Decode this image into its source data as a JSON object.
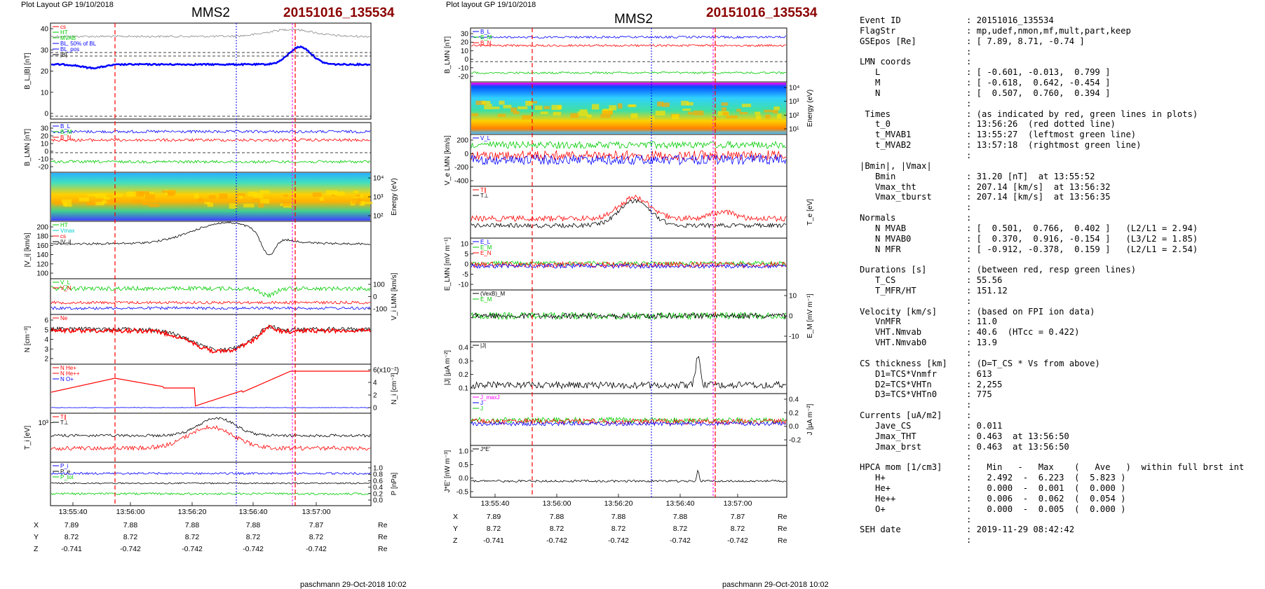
{
  "left_plot": {
    "header": "Plot Layout GP 19/10/2018",
    "title": "MMS2",
    "event": "20151016_135534",
    "footer": "paschmann 29-Oct-2018 10:02",
    "time_ticks": [
      "13:55:40",
      "13:56:00",
      "13:56:20",
      "13:56:40",
      "13:57:00"
    ],
    "coords": {
      "X": [
        "7.89",
        "7.88",
        "7.88",
        "7.88",
        "7.87"
      ],
      "Y": [
        "8.72",
        "8.72",
        "8.72",
        "8.72",
        "8.72"
      ],
      "Z": [
        "-0.741",
        "-0.742",
        "-0.742",
        "-0.742",
        "-0.742"
      ],
      "unit": "Re"
    },
    "panels": [
      {
        "ylabel": "B_L,|B| [nT]",
        "ticks": [
          "40",
          "30",
          "20",
          "10",
          "0"
        ],
        "legend": [
          "cs",
          "HT",
          "MVAB",
          "BL, 50% of BL",
          "BL_pos",
          "|B|"
        ]
      },
      {
        "ylabel": "B_LMN [nT]",
        "ticks": [
          "30",
          "20",
          "10",
          "0",
          "-10",
          "-20"
        ],
        "legend": [
          "B_L",
          "B_M",
          "B_N"
        ]
      },
      {
        "ylabel": "Energy (eV)",
        "ticks": [
          "10⁴",
          "10³",
          "10²"
        ]
      },
      {
        "ylabel": "|V_i| [km/s]",
        "ticks": [
          "200",
          "180",
          "160",
          "140",
          "120",
          "100"
        ],
        "legend": [
          "HT",
          "Vmax",
          "cs",
          "|V_i|"
        ]
      },
      {
        "ylabel": "V_i LMN [km/s]",
        "ticks": [
          "100",
          "0",
          "-100"
        ],
        "legend": [
          "V_L",
          "V_N"
        ]
      },
      {
        "ylabel": "N [cm⁻³]",
        "ticks": [
          "6",
          "5",
          "4",
          "3",
          "2"
        ],
        "legend": [
          "Ne"
        ]
      },
      {
        "ylabel": "N_i [cm⁻³]",
        "ticks": [
          "6(x10⁻²)",
          "4",
          "2",
          "0"
        ],
        "legend": [
          "N He+",
          "N He++",
          "N O+"
        ]
      },
      {
        "ylabel": "T_i [eV]",
        "ticks": [
          "10³"
        ],
        "legend": [
          "T∥",
          "T⊥"
        ]
      },
      {
        "ylabel": "P [nPa]",
        "ticks": [
          "1.0",
          "0.8",
          "0.6",
          "0.4",
          "0.2",
          "0.0"
        ],
        "legend": [
          "P_i",
          "P_e",
          "P_tot"
        ]
      }
    ]
  },
  "right_plot": {
    "header": "Plot layout GP 19/10/2018",
    "title": "MMS2",
    "event": "20151016_135534",
    "footer": "paschmann 29-Oct-2018 10:02",
    "time_ticks": [
      "13:55:40",
      "13:56:00",
      "13:56:20",
      "13:56:40",
      "13:57:00"
    ],
    "coords": {
      "X": [
        "7.89",
        "7.88",
        "7.88",
        "7.88",
        "7.87"
      ],
      "Y": [
        "8.72",
        "8.72",
        "8.72",
        "8.72",
        "8.72"
      ],
      "Z": [
        "-0.741",
        "-0.742",
        "-0.742",
        "-0.742",
        "-0.742"
      ],
      "unit": "Re"
    },
    "panels": [
      {
        "ylabel": "B_LMN [nT]",
        "ticks": [
          "30",
          "20",
          "10",
          "0",
          "-10",
          "-20"
        ],
        "legend": [
          "B_L",
          "B_M",
          "B_N"
        ]
      },
      {
        "ylabel": "Energy (eV)",
        "ticks": [
          "10⁴",
          "10³",
          "10²",
          "10¹"
        ]
      },
      {
        "ylabel": "V_e LMN [km/s]",
        "ticks": [
          "200",
          "0",
          "-200",
          "-400"
        ],
        "legend": [
          "V_L"
        ]
      },
      {
        "ylabel": "T_e [eV]",
        "ticks": [],
        "legend": [
          "T∥",
          "T⊥"
        ]
      },
      {
        "ylabel": "E_LMN [mV m⁻¹]",
        "ticks": [
          "10",
          "5",
          "0",
          "-5",
          "-10"
        ],
        "legend": [
          "E_L",
          "E_M",
          "E_N"
        ]
      },
      {
        "ylabel": "E_M [mV m⁻¹]",
        "ticks": [
          "10",
          "0",
          "-10"
        ],
        "legend": [
          "(VexB)_M",
          "E_M"
        ]
      },
      {
        "ylabel": "|J| [µA m⁻²]",
        "ticks": [
          "0.4",
          "0.3",
          "0.2",
          "0.1"
        ],
        "legend": [
          "|J|"
        ]
      },
      {
        "ylabel": "J [µA m⁻²]",
        "ticks": [
          "0.4",
          "0.2",
          "0.0",
          "-0.2"
        ],
        "legend": [
          "J_maxJ",
          "J",
          "J"
        ]
      },
      {
        "ylabel": "J*E' [nW m⁻³]",
        "ticks": [
          "1.0",
          "0.5",
          "0.0",
          "-0.5"
        ],
        "legend": [
          "J*E'"
        ]
      }
    ]
  },
  "event_table": [
    [
      "Event ID",
      ": 20151016_135534"
    ],
    [
      "FlagStr",
      ": mp,udef,nmon,mf,mult,part,keep"
    ],
    [
      "GSEpos [Re]",
      ": [ 7.89, 8.71, -0.74 ]"
    ],
    [
      "",
      ":"
    ],
    [
      "LMN coords",
      ":"
    ],
    [
      "   L",
      ": [ -0.601, -0.013,  0.799 ]"
    ],
    [
      "   M",
      ": [ -0.618,  0.642, -0.454 ]"
    ],
    [
      "   N",
      ": [  0.507,  0.760,  0.394 ]"
    ],
    [
      "",
      ":"
    ],
    [
      " Times",
      ": (as indicated by red, green lines in plots)"
    ],
    [
      "   t_0",
      ": 13:56:26  (red dotted line)"
    ],
    [
      "   t_MVAB1",
      ": 13:55:27  (leftmost green line)"
    ],
    [
      "   t_MVAB2",
      ": 13:57:18  (rightmost green line)"
    ],
    [
      "",
      ":"
    ],
    [
      "|Bmin|, |Vmax|",
      ""
    ],
    [
      "   Bmin",
      ": 31.20 [nT]  at 13:55:52"
    ],
    [
      "   Vmax_tht",
      ": 207.14 [km/s]  at 13:56:32"
    ],
    [
      "   Vmax_tburst",
      ": 207.14 [km/s]  at 13:56:35"
    ],
    [
      "",
      ":"
    ],
    [
      "Normals",
      ":"
    ],
    [
      "   N MVAB",
      ": [  0.501,  0.766,  0.402 ]   (L2/L1 = 2.94)"
    ],
    [
      "   N MVAB0",
      ": [  0.370,  0.916, -0.154 ]   (L3/L2 = 1.85)"
    ],
    [
      "   N MFR",
      ": [ -0.912, -0.378,  0.159 ]   (L2/L1 = 2.54)"
    ],
    [
      "",
      ":"
    ],
    [
      "Durations [s]",
      ": (between red, resp green lines)"
    ],
    [
      "   T_CS",
      ": 55.56"
    ],
    [
      "   T_MFR/HT",
      ": 151.12"
    ],
    [
      "",
      ":"
    ],
    [
      "Velocity [km/s]",
      ": (based on FPI ion data)"
    ],
    [
      "   VnMFR",
      ": 11.0"
    ],
    [
      "   VHT.Nmvab",
      ": 40.6  (HTcc = 0.422)"
    ],
    [
      "   VHT.Nmvab0",
      ": 13.9"
    ],
    [
      "",
      ":"
    ],
    [
      "CS thickness [km]",
      ": (D=T_CS * Vs from above)"
    ],
    [
      "   D1=TCS*Vnmfr",
      ": 613"
    ],
    [
      "   D2=TCS*VHTn",
      ": 2,255"
    ],
    [
      "   D3=TCS*VHTn0",
      ": 775"
    ],
    [
      "",
      ":"
    ],
    [
      "Currents [uA/m2]",
      ":"
    ],
    [
      "   Jave_CS",
      ": 0.011"
    ],
    [
      "   Jmax_THT",
      ": 0.463  at 13:56:50"
    ],
    [
      "   Jmax_brst",
      ": 0.463  at 13:56:50"
    ],
    [
      "",
      ":"
    ],
    [
      "HPCA mom [1/cm3]",
      ":   Min   -   Max    (   Ave   )  within full brst int"
    ],
    [
      "   H+",
      ":   2.492  -  6.223  (  5.823 )"
    ],
    [
      "   He+",
      ":   0.000  -  0.001  (  0.000 )"
    ],
    [
      "   He++",
      ":   0.006  -  0.062  (  0.054 )"
    ],
    [
      "   O+",
      ":   0.000  -  0.005  (  0.000 )"
    ],
    [
      "",
      ":"
    ],
    [
      "SEH date",
      ": 2019-11-29 08:42:42"
    ],
    [
      "",
      ":"
    ]
  ],
  "colors": {
    "red": "#ff0000",
    "blue": "#0000ff",
    "green": "#00cc00",
    "black": "#000000",
    "darkred": "#8b0000",
    "magenta": "#ff00ff",
    "gray": "#888888"
  }
}
